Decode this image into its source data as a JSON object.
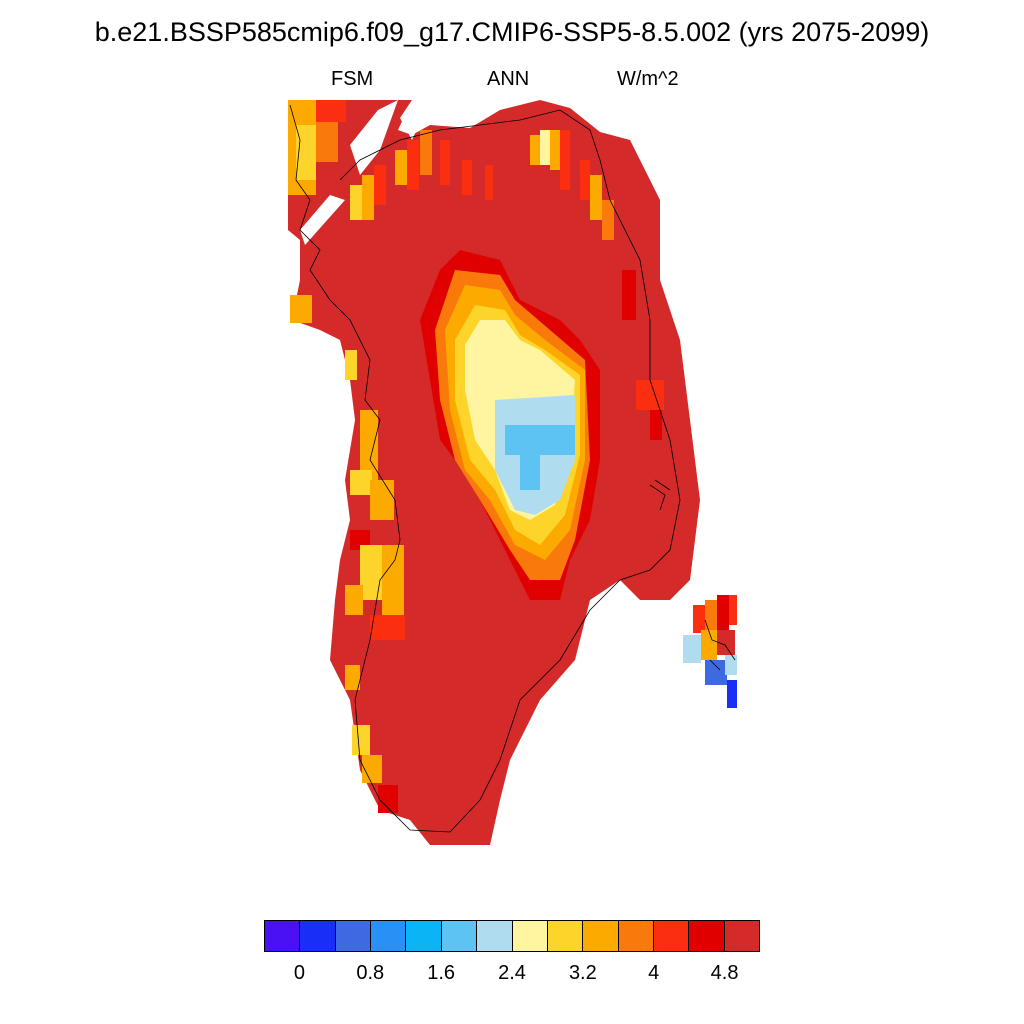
{
  "title": "b.e21.BSSP585cmip6.f09_g17.CMIP6-SSP5-8.5.002 (yrs 2075-2099)",
  "subtitle_left": "FSM",
  "subtitle_center": "ANN",
  "subtitle_right": "W/m^2",
  "colorbar": {
    "colors": [
      "#4b11f5",
      "#1a2ff5",
      "#3d6ae0",
      "#2990f5",
      "#0ab4f5",
      "#5dc3f2",
      "#b0dcf0",
      "#fff5a0",
      "#fdd42a",
      "#fdaa00",
      "#f97a0a",
      "#fb2f10",
      "#e10000",
      "#d42a2a"
    ],
    "tick_labels": [
      "0",
      "0.8",
      "1.6",
      "2.4",
      "3.2",
      "4",
      "4.8"
    ]
  },
  "map_data": {
    "variable": "FSM",
    "units": "W/m^2",
    "period": "ANN",
    "levels": [
      0,
      0.4,
      0.8,
      1.2,
      1.6,
      2.0,
      2.4,
      2.8,
      3.2,
      3.6,
      4.0,
      4.4,
      4.8
    ],
    "features": [
      "Greenland ice sheet region",
      "Svalbard/Iceland fragment (lower right)"
    ]
  }
}
